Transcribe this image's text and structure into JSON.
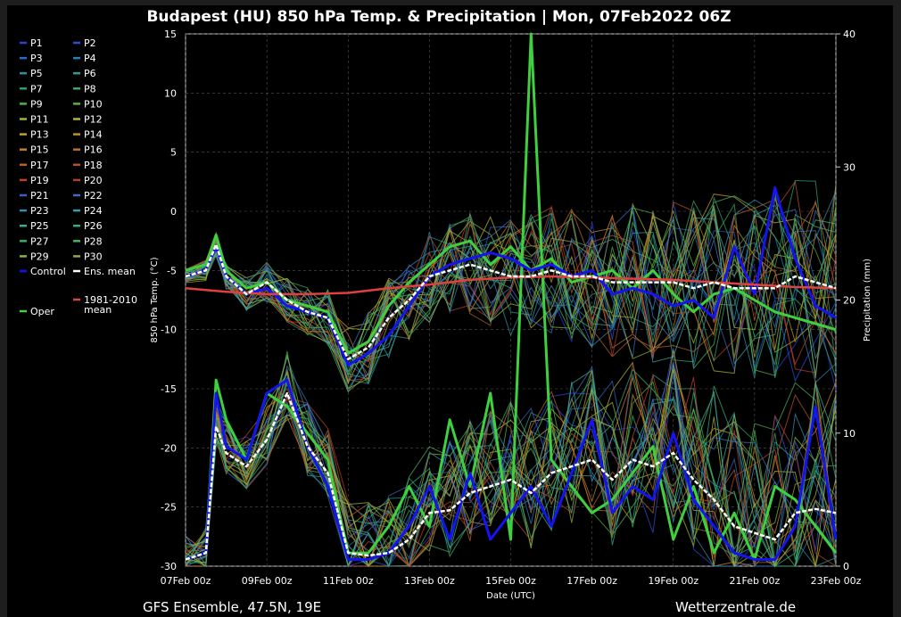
{
  "title": "Budapest  (HU)  850 hPa Temp. & Precipitation | Mon, 07Feb2022 06Z",
  "footer_left": "GFS Ensemble, 47.5N, 19E",
  "footer_right": "Wetterzentrale.de",
  "colors": {
    "background": "#000000",
    "ens_mean": "#ffffff",
    "climate_mean": "#e04040",
    "control": "#1414f0",
    "oper": "#3fcf3f",
    "grid": "#555555"
  },
  "legend": [
    {
      "label": "P1",
      "color": "#2a3fd6"
    },
    {
      "label": "P2",
      "color": "#2a4fd6"
    },
    {
      "label": "P3",
      "color": "#2a6fc6"
    },
    {
      "label": "P4",
      "color": "#2a7fb6"
    },
    {
      "label": "P5",
      "color": "#2a8f9f"
    },
    {
      "label": "P6",
      "color": "#2a9f8f"
    },
    {
      "label": "P7",
      "color": "#2aa07a"
    },
    {
      "label": "P8",
      "color": "#3aa868"
    },
    {
      "label": "P9",
      "color": "#4ab44a"
    },
    {
      "label": "P10",
      "color": "#5ab43a"
    },
    {
      "label": "P11",
      "color": "#a6b42a"
    },
    {
      "label": "P12",
      "color": "#b6b42a"
    },
    {
      "label": "P13",
      "color": "#c0a02a"
    },
    {
      "label": "P14",
      "color": "#c0902a"
    },
    {
      "label": "P15",
      "color": "#c0802a"
    },
    {
      "label": "P16",
      "color": "#b8702a"
    },
    {
      "label": "P17",
      "color": "#b8602a"
    },
    {
      "label": "P18",
      "color": "#b8502a"
    },
    {
      "label": "P19",
      "color": "#c0402a"
    },
    {
      "label": "P20",
      "color": "#b0402a"
    },
    {
      "label": "P21",
      "color": "#3a60c0"
    },
    {
      "label": "P22",
      "color": "#3a70c0"
    },
    {
      "label": "P23",
      "color": "#3a8ab0"
    },
    {
      "label": "P24",
      "color": "#3a9ab0"
    },
    {
      "label": "P25",
      "color": "#3aaa90"
    },
    {
      "label": "P26",
      "color": "#3aaa80"
    },
    {
      "label": "P27",
      "color": "#3aaa70"
    },
    {
      "label": "P28",
      "color": "#4ab060"
    },
    {
      "label": "P29",
      "color": "#8ab43a"
    },
    {
      "label": "P30",
      "color": "#a0a43a"
    },
    {
      "label": "Control",
      "color": "#1414f0"
    },
    {
      "label": "Ens. mean",
      "color": "#ffffff"
    },
    {
      "label": "1981-2010 mean",
      "color": "#e04040"
    },
    {
      "label": "Oper",
      "color": "#3fcf3f"
    }
  ],
  "chart_data": {
    "type": "line",
    "title": "Budapest  (HU)  850 hPa Temp. & Precipitation | Mon, 07Feb2022 06Z",
    "xlabel": "Date (UTC)",
    "ylabel": "850 hPa Temp. (°C)",
    "y2label": "Precipitation (mm)",
    "xlim": [
      0,
      16
    ],
    "ylim": [
      -30,
      15
    ],
    "y2lim": [
      0,
      40
    ],
    "grid": true,
    "legend_position": "left",
    "x_ticks": [
      {
        "x": 0,
        "label": "07Feb 00z"
      },
      {
        "x": 2,
        "label": "09Feb 00z"
      },
      {
        "x": 4,
        "label": "11Feb 00z"
      },
      {
        "x": 6,
        "label": "13Feb 00z"
      },
      {
        "x": 8,
        "label": "15Feb 00z"
      },
      {
        "x": 10,
        "label": "17Feb 00z"
      },
      {
        "x": 12,
        "label": "19Feb 00z"
      },
      {
        "x": 14,
        "label": "21Feb 00z"
      },
      {
        "x": 16,
        "label": "23Feb 00z"
      }
    ],
    "y_ticks": [
      15,
      10,
      5,
      0,
      -5,
      -10,
      -15,
      -20,
      -25,
      -30
    ],
    "y2_ticks": [
      40,
      30,
      20,
      10,
      0
    ],
    "series": [
      {
        "name": "Ens. mean",
        "axis": "temp",
        "x": [
          0,
          0.5,
          0.75,
          1,
          1.5,
          2,
          2.5,
          3,
          3.5,
          4,
          4.5,
          5,
          5.5,
          6,
          6.5,
          7,
          7.5,
          8,
          8.5,
          9,
          9.5,
          10,
          10.5,
          11,
          11.5,
          12,
          12.5,
          13,
          13.5,
          14,
          14.5,
          15,
          15.5,
          16
        ],
        "y": [
          -5.5,
          -5,
          -2.8,
          -5.5,
          -7,
          -6,
          -7.5,
          -8.5,
          -9,
          -12.5,
          -11.5,
          -9,
          -7.5,
          -5.5,
          -5,
          -4.5,
          -5,
          -5.5,
          -5.5,
          -5,
          -5.5,
          -5.5,
          -6,
          -6,
          -6,
          -6,
          -6.5,
          -6,
          -6.5,
          -6.5,
          -6.5,
          -5.5,
          -6,
          -6.5
        ]
      },
      {
        "name": "1981-2010 mean",
        "axis": "temp",
        "x": [
          0,
          1,
          2,
          3,
          4,
          5,
          6,
          7,
          8,
          9,
          10,
          11,
          12,
          13,
          14,
          15,
          16
        ],
        "y": [
          -6.5,
          -6.8,
          -7,
          -7,
          -6.9,
          -6.5,
          -6.2,
          -5.8,
          -5.6,
          -5.5,
          -5.6,
          -5.7,
          -5.8,
          -6,
          -6.2,
          -6.4,
          -6.5
        ]
      },
      {
        "name": "Control",
        "axis": "temp",
        "x": [
          0,
          0.5,
          0.75,
          1,
          1.5,
          2,
          2.5,
          3,
          3.5,
          4,
          4.5,
          5,
          5.5,
          6,
          6.5,
          7,
          7.5,
          8,
          8.5,
          9,
          9.5,
          10,
          10.5,
          11,
          11.5,
          12,
          12.5,
          13,
          13.5,
          14,
          14.5,
          15,
          15.5,
          16
        ],
        "y": [
          -5.5,
          -5,
          -3,
          -5.5,
          -7,
          -6.5,
          -8,
          -8.5,
          -9,
          -13,
          -12,
          -10.5,
          -8,
          -5.5,
          -4.5,
          -4,
          -3.5,
          -4,
          -5,
          -4.5,
          -5.5,
          -5,
          -7,
          -6.5,
          -7,
          -8,
          -7.5,
          -9,
          -3,
          -7,
          2,
          -4,
          -8,
          -9
        ]
      },
      {
        "name": "Oper",
        "axis": "temp",
        "x": [
          0,
          0.5,
          0.75,
          1,
          1.5,
          2,
          2.5,
          3,
          3.5,
          4,
          4.5,
          5,
          5.5,
          6,
          6.5,
          7,
          7.5,
          8,
          8.5,
          9,
          9.5,
          10,
          10.5,
          11,
          11.5,
          12,
          12.5,
          13,
          13.5,
          14,
          14.5,
          15,
          15.5,
          16
        ],
        "y": [
          -5,
          -4.5,
          -2,
          -5,
          -6.5,
          -6,
          -7.5,
          -8,
          -8.5,
          -12,
          -11,
          -8,
          -6,
          -4.5,
          -3,
          -2.5,
          -4.5,
          -3,
          -5,
          -4,
          -6,
          -5.5,
          -5,
          -6.5,
          -5,
          -7,
          -8.5,
          -7,
          -6.5,
          -7.5,
          -8.5,
          -9,
          -9.5,
          -10
        ]
      },
      {
        "name": "Ens. mean",
        "axis": "precip",
        "x": [
          0,
          0.5,
          0.75,
          1,
          1.5,
          2,
          2.5,
          3,
          3.5,
          4,
          4.5,
          5,
          5.5,
          6,
          6.5,
          7,
          7.5,
          8,
          8.5,
          9,
          9.5,
          10,
          10.5,
          11,
          11.5,
          12,
          12.5,
          13,
          13.5,
          14,
          14.5,
          15,
          15.5,
          16
        ],
        "y": [
          0.5,
          1,
          10.5,
          8.5,
          7.5,
          9.5,
          13,
          9,
          7,
          1,
          0.8,
          1,
          2,
          4,
          4.2,
          5.5,
          6,
          6.5,
          5.5,
          7,
          7.5,
          8,
          6.5,
          8,
          7.5,
          8.5,
          6.5,
          5,
          3,
          2.5,
          2,
          4,
          4.3,
          4
        ]
      },
      {
        "name": "Control",
        "axis": "precip",
        "x": [
          0,
          0.5,
          0.75,
          1,
          1.5,
          2,
          2.5,
          3,
          3.5,
          4,
          4.5,
          5,
          5.5,
          6,
          6.5,
          7,
          7.5,
          8,
          8.5,
          9,
          9.5,
          10,
          10.5,
          11,
          11.5,
          12,
          12.5,
          13,
          13.5,
          14,
          14.5,
          15,
          15.5,
          16
        ],
        "y": [
          0.5,
          1,
          13,
          9,
          8,
          13,
          14,
          9,
          6,
          0.5,
          0.5,
          1,
          3,
          6,
          2,
          7,
          2,
          4,
          6,
          3,
          7,
          11,
          4,
          6,
          5,
          10,
          5,
          3,
          1,
          0.5,
          0.5,
          3,
          12,
          2
        ]
      },
      {
        "name": "Oper",
        "axis": "precip",
        "x": [
          0,
          0.5,
          0.75,
          1,
          1.5,
          2,
          2.5,
          3,
          3.5,
          4,
          4.5,
          5,
          5.5,
          6,
          6.5,
          7,
          7.5,
          8,
          8.5,
          9,
          9.5,
          10,
          10.5,
          11,
          11.5,
          12,
          12.5,
          13,
          13.5,
          14,
          14.5,
          15,
          15.5,
          16
        ],
        "y": [
          0.5,
          1,
          14,
          11,
          8,
          13,
          12,
          10,
          8,
          1,
          1,
          3,
          6,
          3,
          11,
          6,
          13,
          2,
          40,
          8,
          6,
          4,
          5,
          7,
          9,
          2,
          6,
          1,
          4,
          0.5,
          6,
          5,
          3,
          1
        ]
      }
    ]
  }
}
